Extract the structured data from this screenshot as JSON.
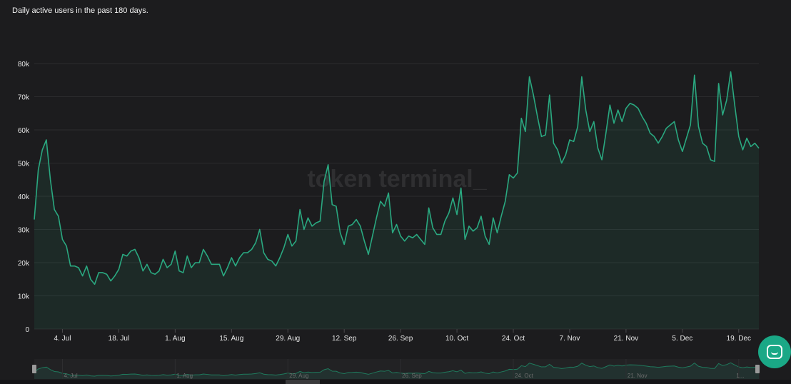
{
  "subtitle": "Daily active users in the past 180 days.",
  "watermark": "token terminal_",
  "colors": {
    "background": "#1c1c1e",
    "line": "#2aa880",
    "grid": "#2c2c2e",
    "accent": "#1aa886"
  },
  "chart_data": {
    "type": "area",
    "title": "",
    "subtitle": "Daily active users in the past 180 days.",
    "xlabel": "",
    "ylabel": "",
    "ylim": [
      0,
      80000
    ],
    "y_ticks": [
      "0",
      "10k",
      "20k",
      "30k",
      "40k",
      "50k",
      "60k",
      "70k",
      "80k"
    ],
    "y_tick_values": [
      0,
      10000,
      20000,
      30000,
      40000,
      50000,
      60000,
      70000,
      80000
    ],
    "x_ticks": [
      "4. Jul",
      "18. Jul",
      "1. Aug",
      "15. Aug",
      "29. Aug",
      "12. Sep",
      "26. Sep",
      "10. Oct",
      "24. Oct",
      "7. Nov",
      "21. Nov",
      "5. Dec",
      "19. Dec"
    ],
    "x_tick_index": [
      7,
      21,
      35,
      49,
      63,
      77,
      91,
      105,
      119,
      133,
      147,
      161,
      175
    ],
    "x_start": "2022-06-27",
    "x_end": "2022-12-22",
    "grid": true,
    "legend": "none",
    "navigator_ticks": [
      "4. Jul",
      "1. Aug",
      "29. Aug",
      "26. Sep",
      "24. Oct",
      "21. Nov",
      "1..."
    ],
    "navigator_tick_index": [
      7,
      35,
      63,
      91,
      119,
      147,
      175
    ],
    "series": [
      {
        "values": [
          33000,
          48000,
          54000,
          57000,
          45000,
          36000,
          34000,
          27000,
          25000,
          19000,
          19000,
          18500,
          16000,
          19000,
          15000,
          13500,
          17000,
          17000,
          16500,
          14500,
          16000,
          18000,
          22500,
          22000,
          23500,
          24000,
          21500,
          17500,
          19500,
          17000,
          16500,
          17500,
          21000,
          18500,
          19500,
          23500,
          17500,
          17000,
          22000,
          18500,
          20000,
          20000,
          24000,
          22000,
          19500,
          19500,
          19500,
          16000,
          18500,
          21500,
          19000,
          21500,
          23000,
          23000,
          24000,
          26000,
          30000,
          23000,
          21000,
          20500,
          19000,
          21500,
          24500,
          28500,
          25000,
          26500,
          36000,
          30000,
          33500,
          31000,
          32000,
          32500,
          44500,
          49500,
          37500,
          37000,
          29000,
          25500,
          31000,
          31500,
          33000,
          31000,
          26500,
          22500,
          28000,
          33500,
          38500,
          37000,
          41000,
          29000,
          31500,
          28000,
          26500,
          28000,
          27500,
          28500,
          27000,
          25500,
          36500,
          30500,
          28500,
          28500,
          32500,
          35000,
          39500,
          34500,
          42500,
          27000,
          31000,
          29500,
          30500,
          34000,
          28000,
          25500,
          33500,
          29000,
          34000,
          38500,
          46500,
          45500,
          47000,
          63500,
          59500,
          76000,
          70500,
          64000,
          58000,
          58500,
          70500,
          56000,
          54000,
          50000,
          52500,
          57000,
          56500,
          61000,
          76000,
          66000,
          59500,
          62500,
          54500,
          51000,
          59000,
          67500,
          62000,
          66000,
          62500,
          66500,
          68000,
          67500,
          66500,
          64000,
          62000,
          59000,
          58000,
          56000,
          58000,
          60500,
          61500,
          62500,
          57000,
          53500,
          57500,
          61500,
          76500,
          61000,
          56000,
          55000,
          51000,
          50500,
          74000,
          64500,
          69000,
          77500,
          67500,
          58000,
          54000,
          57500,
          55000,
          56000,
          54500
        ]
      }
    ]
  },
  "intercom": {
    "icon": "chat-bubble-icon"
  }
}
